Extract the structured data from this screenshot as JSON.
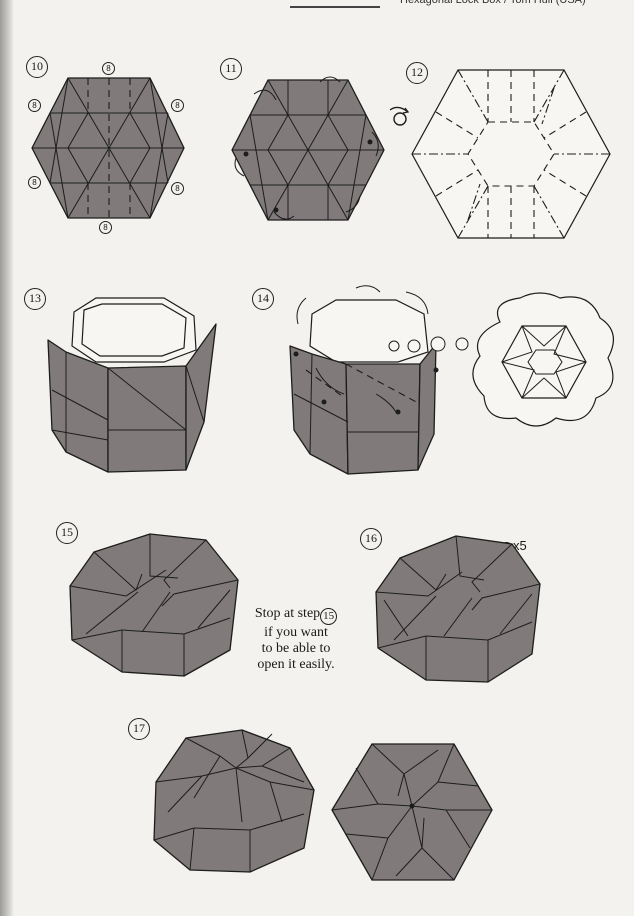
{
  "header": {
    "title": "Hexagonal Lock Box / Tom Hull (USA)"
  },
  "steps": {
    "s10": "10",
    "s11": "11",
    "s12": "12",
    "s13": "13",
    "s14": "14",
    "s15": "15",
    "s16": "16",
    "s17": "17"
  },
  "step10_refs": [
    "8",
    "8",
    "8",
    "8",
    "8",
    "8"
  ],
  "note": {
    "line1_prefix": "Stop at step",
    "line1_step": "15",
    "line2": "if you want",
    "line3": "to be able to",
    "line4": "open it easily."
  },
  "repeat": {
    "step": "15",
    "times": "x5"
  },
  "colors": {
    "paper_colored": "#807b7a",
    "paper_white": "#f7f6f2",
    "lines": "#1d1d1d",
    "page": "#f4f2ee"
  },
  "icons": {
    "turn_over": "turn-over-icon",
    "fold_arrow": "fold-arrow-icon"
  }
}
